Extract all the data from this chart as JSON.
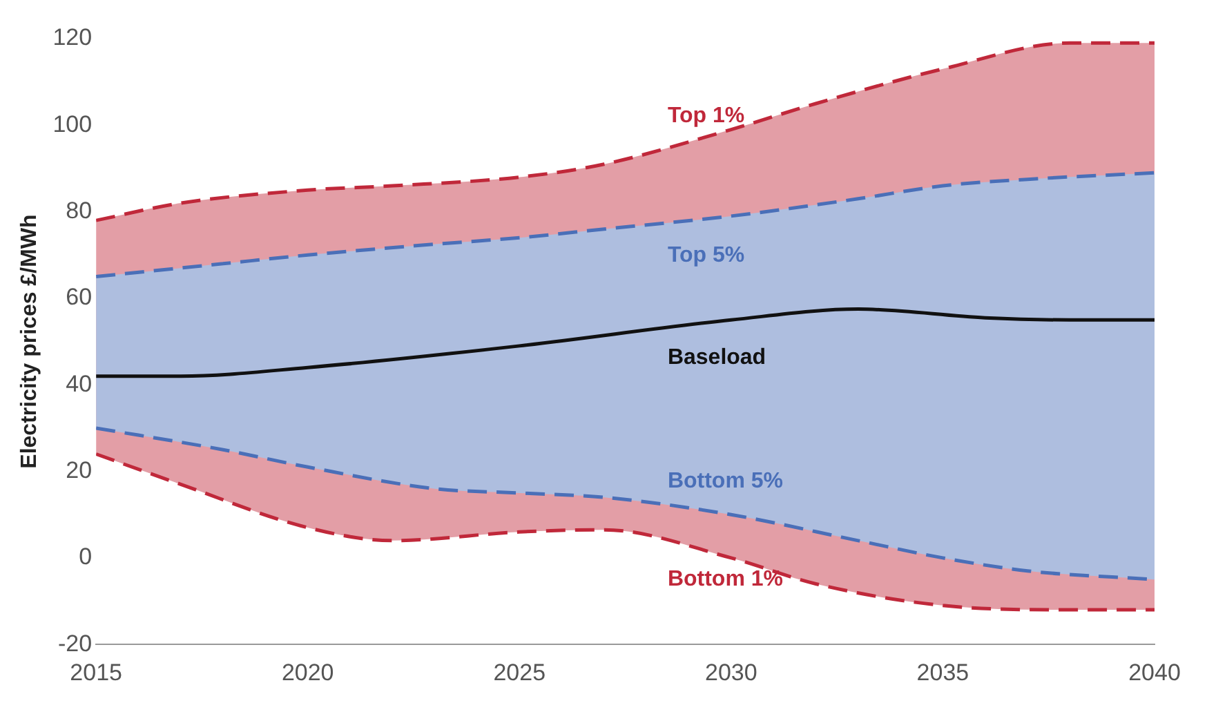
{
  "chart_data": {
    "type": "line",
    "ylabel": "Electricity prices £/MWh",
    "xlim": [
      2015,
      2040
    ],
    "xticks": [
      2015,
      2020,
      2025,
      2030,
      2035,
      2040
    ],
    "ylim": [
      -20,
      120
    ],
    "yticks": [
      -20,
      0,
      20,
      40,
      60,
      80,
      100,
      120
    ],
    "grid": false,
    "legend": false,
    "line_style": "dashed",
    "marker": "none",
    "series": [
      {
        "name": "Top 1%",
        "color": "#c0283a",
        "x": [
          2015,
          2017,
          2020,
          2022,
          2025,
          2027,
          2030,
          2032,
          2035,
          2038,
          2040
        ],
        "values": [
          78,
          82,
          85,
          86,
          88,
          91,
          99,
          105,
          113,
          119,
          119
        ],
        "lower": [
          24,
          17,
          7,
          4,
          6,
          6.5,
          0,
          -6,
          -11,
          -12,
          -12
        ],
        "upper": [
          78,
          82,
          85,
          86,
          88,
          91,
          99,
          105,
          113,
          119,
          119
        ]
      },
      {
        "name": "Top 5%",
        "color": "#4a6fb8",
        "x": [
          2015,
          2018,
          2020,
          2023,
          2025,
          2027,
          2030,
          2033,
          2035,
          2037,
          2040
        ],
        "values": [
          65,
          68,
          70,
          72.5,
          74,
          76,
          79,
          83,
          86,
          87.5,
          89
        ],
        "lower": [
          30,
          25,
          21,
          16,
          15,
          14,
          10,
          4,
          0,
          -3,
          -5
        ],
        "upper": [
          65,
          68,
          70,
          72.5,
          74,
          76,
          79,
          83,
          86,
          87.5,
          89
        ]
      },
      {
        "name": "Baseload",
        "color": "#111111",
        "line_style": "solid",
        "x": [
          2015,
          2017,
          2020,
          2025,
          2030,
          2033,
          2036,
          2038,
          2040
        ],
        "values": [
          42,
          42,
          44,
          49,
          55,
          57.5,
          55.5,
          55,
          55
        ]
      },
      {
        "name": "Bottom 5%",
        "color": "#4a6fb8",
        "x": [
          2015,
          2018,
          2020,
          2023,
          2025,
          2027,
          2030,
          2033,
          2035,
          2037,
          2040
        ],
        "values": [
          30,
          25,
          21,
          16,
          15,
          14,
          10,
          4,
          0,
          -3,
          -5
        ]
      },
      {
        "name": "Bottom 1%",
        "color": "#c0283a",
        "x": [
          2015,
          2017,
          2020,
          2022,
          2025,
          2027,
          2030,
          2032,
          2035,
          2038,
          2040
        ],
        "values": [
          24,
          17,
          7,
          4,
          6,
          6.5,
          0,
          -6,
          -11,
          -12,
          -12
        ]
      }
    ]
  }
}
